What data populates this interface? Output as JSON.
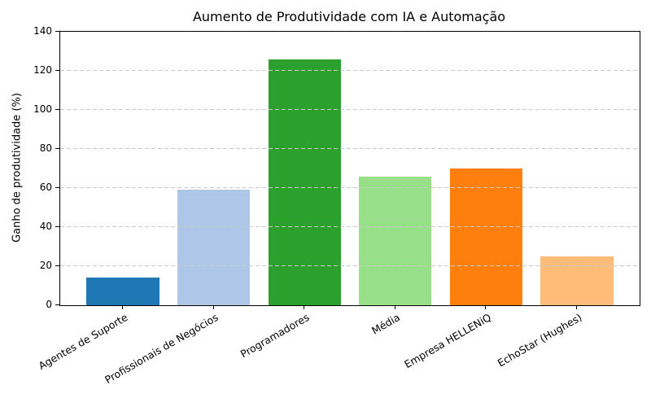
{
  "chart_data": {
    "type": "bar",
    "title": "Aumento de Produtividade com IA e Automação",
    "xlabel": "",
    "ylabel": "Ganho de produtividade (%)",
    "categories": [
      "Agentes de Suporte",
      "Profissionais de Negócios",
      "Programadores",
      "Média",
      "Empresa HELLENiQ",
      "EchoStar (Hughes)"
    ],
    "values": [
      14,
      59,
      126,
      66,
      70,
      25
    ],
    "bar_colors": [
      "#1f77b4",
      "#aec7e8",
      "#2ca02c",
      "#98df8a",
      "#ff7f0e",
      "#ffbb78"
    ],
    "ylim": [
      0,
      140
    ],
    "yticks": [
      0,
      20,
      40,
      60,
      80,
      100,
      120,
      140
    ],
    "grid": "horizontal",
    "grid_style": "dashed",
    "grid_color": "#cbcbcb",
    "grid_above_bars": true,
    "legend": "none",
    "xtick_rotation": 30,
    "background": "#ffffff",
    "spine_color": "#000000",
    "bar_width_fraction": 0.8
  }
}
